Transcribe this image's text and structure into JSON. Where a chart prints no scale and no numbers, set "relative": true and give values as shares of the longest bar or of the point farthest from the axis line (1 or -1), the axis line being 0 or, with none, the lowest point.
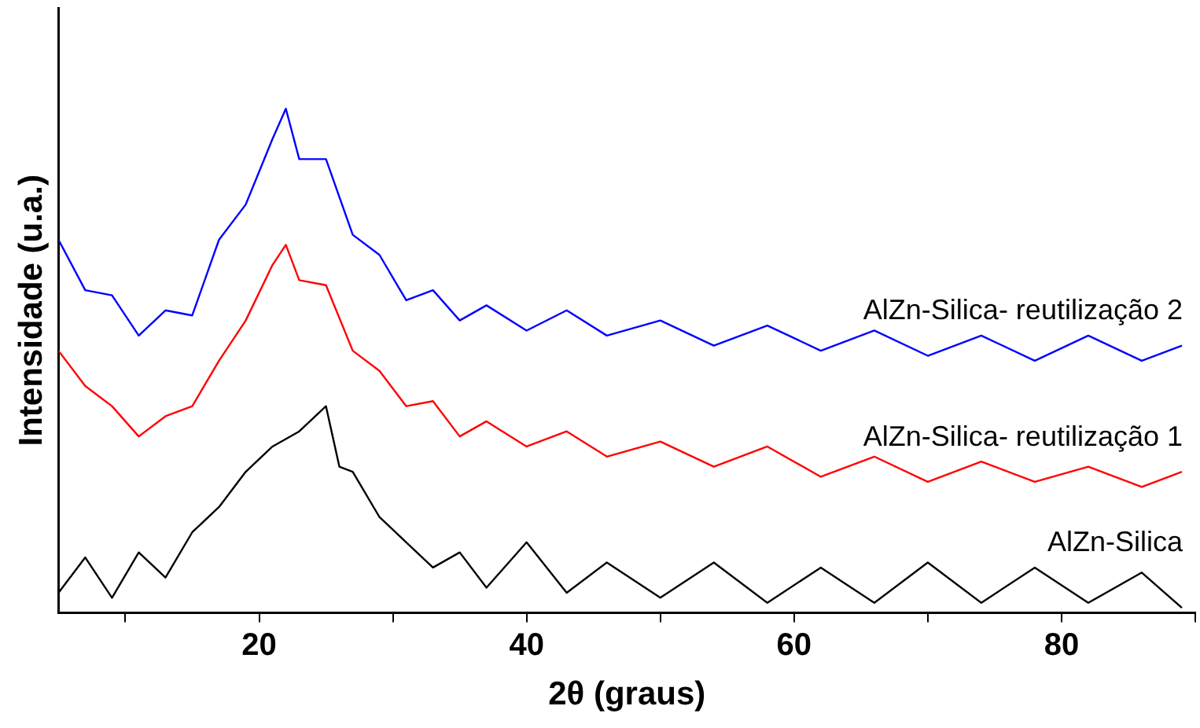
{
  "chart_data": {
    "type": "line",
    "relative": true,
    "xlabel": "2θ (graus)",
    "ylabel": "Intensidade (u.a.)",
    "xlim": [
      5,
      90
    ],
    "xticks": [
      {
        "value": 10,
        "label": null
      },
      20,
      {
        "value": 30,
        "label": null
      },
      40,
      {
        "value": 50,
        "label": null
      },
      60,
      {
        "value": 70,
        "label": null
      },
      80,
      {
        "value": 90,
        "label": null
      }
    ],
    "tick_labels": "x",
    "grid": false,
    "legend": false,
    "marker": "none",
    "line_style": "solid",
    "series": [
      {
        "name": "AlZn-Silica- reutilização 2",
        "color": "#0000ff",
        "x": [
          5,
          7,
          9,
          11,
          13,
          15,
          17,
          19,
          21,
          22,
          23,
          25,
          27,
          29,
          31,
          33,
          35,
          37,
          40,
          43,
          46,
          50,
          54,
          58,
          62,
          66,
          70,
          74,
          78,
          82,
          86,
          89
        ],
        "values": [
          0.74,
          0.64,
          0.63,
          0.55,
          0.6,
          0.59,
          0.74,
          0.81,
          0.94,
          1,
          0.9,
          0.9,
          0.75,
          0.71,
          0.62,
          0.64,
          0.58,
          0.61,
          0.56,
          0.6,
          0.55,
          0.58,
          0.53,
          0.57,
          0.52,
          0.56,
          0.51,
          0.55,
          0.5,
          0.55,
          0.5,
          0.53
        ]
      },
      {
        "name": "AlZn-Silica- reutilização 1",
        "color": "#ff0000",
        "x": [
          5,
          7,
          9,
          11,
          13,
          15,
          17,
          19,
          21,
          22,
          23,
          25,
          27,
          29,
          31,
          33,
          35,
          37,
          40,
          43,
          46,
          50,
          54,
          58,
          62,
          66,
          70,
          74,
          78,
          82,
          86,
          89
        ],
        "values": [
          0.52,
          0.45,
          0.41,
          0.35,
          0.39,
          0.41,
          0.5,
          0.58,
          0.69,
          0.73,
          0.66,
          0.65,
          0.52,
          0.48,
          0.41,
          0.42,
          0.35,
          0.38,
          0.33,
          0.36,
          0.31,
          0.34,
          0.29,
          0.33,
          0.27,
          0.31,
          0.26,
          0.3,
          0.26,
          0.29,
          0.25,
          0.28
        ]
      },
      {
        "name": "AlZn-Silica",
        "color": "#000000",
        "x": [
          5,
          7,
          9,
          11,
          13,
          15,
          17,
          19,
          21,
          23,
          25,
          26,
          27,
          29,
          31,
          33,
          35,
          37,
          40,
          43,
          46,
          50,
          54,
          58,
          62,
          66,
          70,
          74,
          78,
          82,
          86,
          89
        ],
        "values": [
          0.04,
          0.11,
          0.03,
          0.12,
          0.07,
          0.16,
          0.21,
          0.28,
          0.33,
          0.36,
          0.41,
          0.29,
          0.28,
          0.19,
          0.14,
          0.09,
          0.12,
          0.05,
          0.14,
          0.04,
          0.1,
          0.03,
          0.1,
          0.02,
          0.09,
          0.02,
          0.1,
          0.02,
          0.09,
          0.02,
          0.08,
          0.01
        ]
      }
    ]
  }
}
